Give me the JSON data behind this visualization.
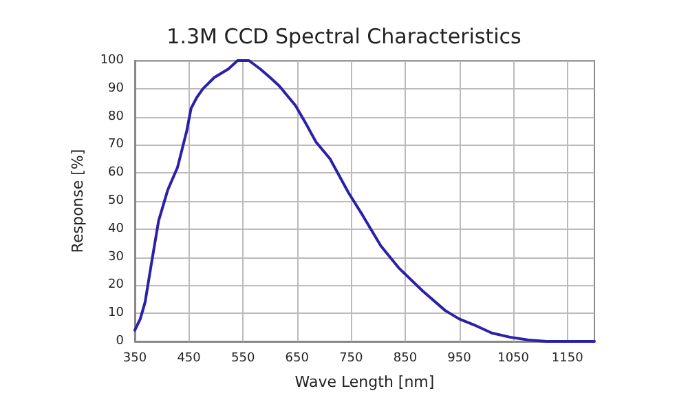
{
  "chart_data": {
    "type": "line",
    "title": "1.3M CCD Spectral Characteristics",
    "xlabel": "Wave Length [nm]",
    "ylabel": "Response [%]",
    "x": [
      350,
      360,
      369,
      380,
      394,
      411,
      429,
      446,
      454,
      465,
      476,
      497,
      523,
      540,
      561,
      582,
      600,
      617,
      647,
      668,
      685,
      711,
      745,
      771,
      805,
      839,
      882,
      924,
      950,
      976,
      1010,
      1044,
      1078,
      1112,
      1200
    ],
    "series": [
      {
        "color": "#2b21a8",
        "values": [
          4,
          8,
          14,
          27,
          43,
          54,
          62,
          75,
          83,
          87,
          90,
          94,
          97,
          100,
          100,
          97,
          94,
          91,
          84,
          77,
          71,
          65,
          53,
          45,
          34,
          26,
          18,
          11,
          8,
          6,
          3,
          1.5,
          0.5,
          0,
          0
        ]
      }
    ],
    "xlim": [
      350,
      1200
    ],
    "xticks": [
      350,
      450,
      550,
      650,
      750,
      850,
      950,
      1050,
      1150
    ],
    "ylim": [
      0,
      100
    ],
    "yticks": [
      0,
      10,
      20,
      30,
      40,
      50,
      60,
      70,
      80,
      90,
      100
    ],
    "grid": true,
    "marker": "none",
    "line_style": "solid"
  }
}
